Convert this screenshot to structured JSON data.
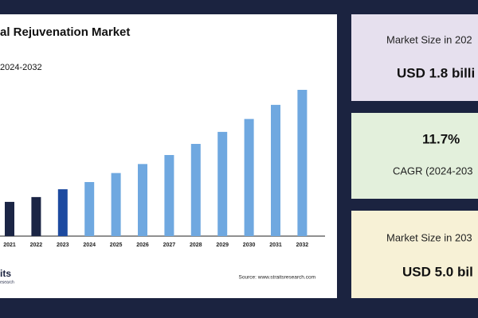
{
  "chart_data": {
    "type": "bar",
    "title": "al Rejuvenation Market",
    "subtitle": "2024-2032",
    "categories": [
      "2021",
      "2022",
      "2023",
      "2024",
      "2025",
      "2026",
      "2027",
      "2028",
      "2029",
      "2030",
      "2031",
      "2032"
    ],
    "values": [
      1.14,
      1.3,
      1.56,
      1.8,
      2.1,
      2.4,
      2.7,
      3.07,
      3.47,
      3.9,
      4.37,
      4.87
    ],
    "colors": [
      "#1b2545",
      "#1b2545",
      "#1d4aa0",
      "#6fa8e0",
      "#6fa8e0",
      "#6fa8e0",
      "#6fa8e0",
      "#6fa8e0",
      "#6fa8e0",
      "#6fa8e0",
      "#6fa8e0",
      "#6fa8e0"
    ],
    "source": "Source: www.straitsresearch.com",
    "logo": [
      "its",
      "esearch"
    ]
  },
  "cards": [
    {
      "label": "Market Size in 202",
      "value": "USD 1.8 billi"
    },
    {
      "value": "11.7%",
      "label": "CAGR (2024-203"
    },
    {
      "label": "Market Size in 203",
      "value": "USD 5.0 bil"
    }
  ]
}
